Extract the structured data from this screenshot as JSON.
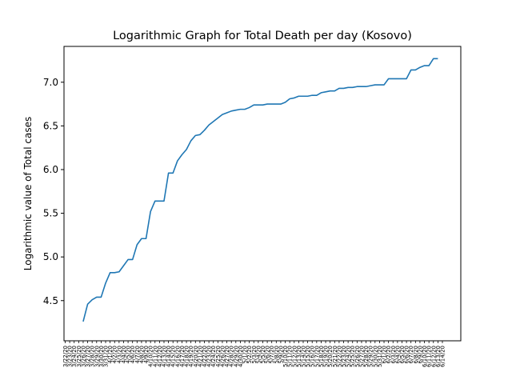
{
  "chart_data": {
    "type": "line",
    "title": "Logarithmic Graph for Total Death per day (Kosovo)",
    "xlabel": "",
    "ylabel": "Logarithmic value of Total cases",
    "yticks": [
      "4.5",
      "5.0",
      "5.5",
      "6.0",
      "6.5",
      "7.0"
    ],
    "ylim": [
      4.04,
      7.41
    ],
    "grid": false,
    "legend": "none",
    "line_color": "#1f77b4",
    "x": [
      "3/22/20",
      "3/23/20",
      "3/24/20",
      "3/25/20",
      "3/26/20",
      "3/27/20",
      "3/28/20",
      "3/29/20",
      "3/30/20",
      "3/31/20",
      "4/1/20",
      "4/2/20",
      "4/3/20",
      "4/4/20",
      "4/5/20",
      "4/6/20",
      "4/7/20",
      "4/8/20",
      "4/9/20",
      "4/10/20",
      "4/11/20",
      "4/12/20",
      "4/13/20",
      "4/14/20",
      "4/15/20",
      "4/16/20",
      "4/17/20",
      "4/18/20",
      "4/19/20",
      "4/20/20",
      "4/21/20",
      "4/22/20",
      "4/23/20",
      "4/24/20",
      "4/25/20",
      "4/26/20",
      "4/27/20",
      "4/28/20",
      "4/29/20",
      "4/30/20",
      "5/1/20",
      "5/2/20",
      "5/3/20",
      "5/4/20",
      "5/5/20",
      "5/6/20",
      "5/7/20",
      "5/8/20",
      "5/9/20",
      "5/10/20",
      "5/11/20",
      "5/12/20",
      "5/13/20",
      "5/14/20",
      "5/15/20",
      "5/16/20",
      "5/17/20",
      "5/18/20",
      "5/19/20",
      "5/20/20",
      "5/21/20",
      "5/22/20",
      "5/23/20",
      "5/24/20",
      "5/25/20",
      "5/26/20",
      "5/27/20",
      "5/28/20",
      "5/29/20",
      "5/30/20",
      "5/31/20",
      "6/1/20",
      "6/2/20",
      "6/3/20",
      "6/4/20",
      "6/5/20",
      "6/6/20",
      "6/7/20",
      "6/8/20",
      "6/9/20",
      "6/10/20",
      "6/11/20",
      "6/12/20",
      "6/13/20",
      "6/14/20"
    ],
    "y": [
      null,
      null,
      null,
      null,
      4.26,
      4.46,
      4.51,
      4.54,
      4.54,
      4.7,
      4.82,
      4.82,
      4.83,
      4.9,
      4.97,
      4.97,
      5.14,
      5.21,
      5.21,
      5.52,
      5.64,
      5.64,
      5.64,
      5.96,
      5.96,
      6.1,
      6.17,
      6.23,
      6.33,
      6.39,
      6.4,
      6.45,
      6.51,
      6.55,
      6.59,
      6.63,
      6.65,
      6.67,
      6.68,
      6.69,
      6.69,
      6.71,
      6.74,
      6.74,
      6.74,
      6.75,
      6.75,
      6.75,
      6.75,
      6.77,
      6.81,
      6.82,
      6.84,
      6.84,
      6.84,
      6.85,
      6.85,
      6.88,
      6.89,
      6.9,
      6.9,
      6.93,
      6.93,
      6.94,
      6.94,
      6.95,
      6.95,
      6.95,
      6.96,
      6.97,
      6.97,
      6.97,
      7.04,
      7.04,
      7.04,
      7.04,
      7.04,
      7.14,
      7.14,
      7.17,
      7.19,
      7.19,
      7.27,
      7.27,
      null
    ]
  }
}
